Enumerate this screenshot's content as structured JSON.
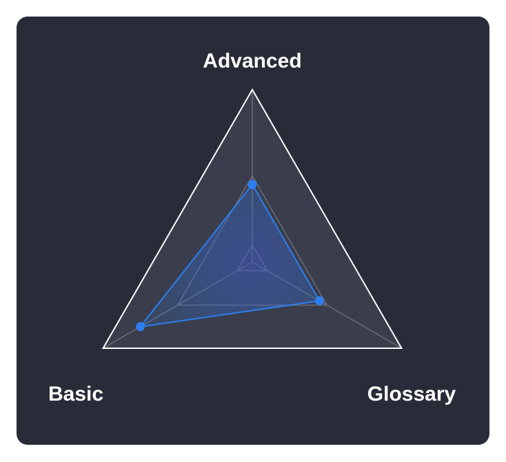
{
  "chart_data": {
    "type": "radar",
    "axes": [
      "Advanced",
      "Glossary",
      "Basic"
    ],
    "values": [
      0.45,
      0.45,
      0.75
    ],
    "max": 1,
    "grid_levels": [
      0.1,
      0.5,
      1.0
    ],
    "colors": {
      "background": "#282c38",
      "area_fill": "#3a3e4c",
      "outer_ring": "#ffffff",
      "inner_grid": "#6a6d77",
      "series": "#2d7ff0"
    }
  }
}
